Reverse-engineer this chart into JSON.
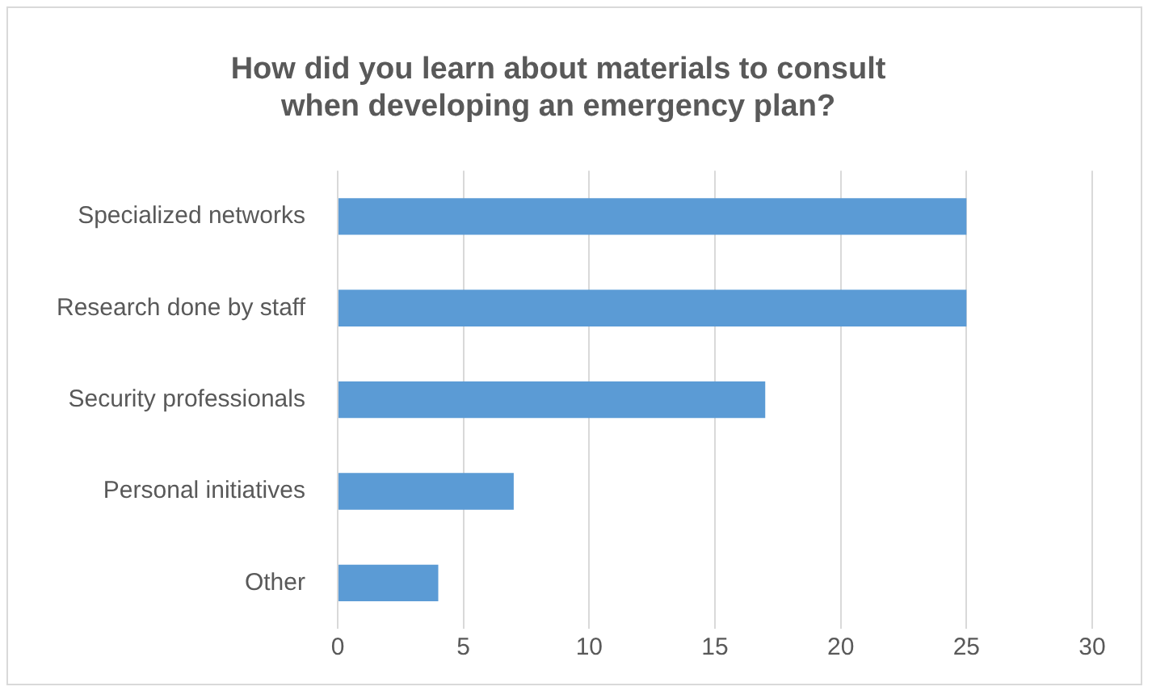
{
  "chart_data": {
    "type": "bar",
    "orientation": "horizontal",
    "title": "How did you learn about materials to consult\nwhen developing an emergency plan?",
    "categories": [
      "Specialized networks",
      "Research done by staff",
      "Security professionals",
      "Personal initiatives",
      "Other"
    ],
    "values": [
      25,
      25,
      17,
      7,
      4
    ],
    "color": "#5b9bd5",
    "xlim": [
      0,
      30
    ],
    "xticks": [
      0,
      5,
      10,
      15,
      20,
      25,
      30
    ],
    "grid": "x"
  }
}
